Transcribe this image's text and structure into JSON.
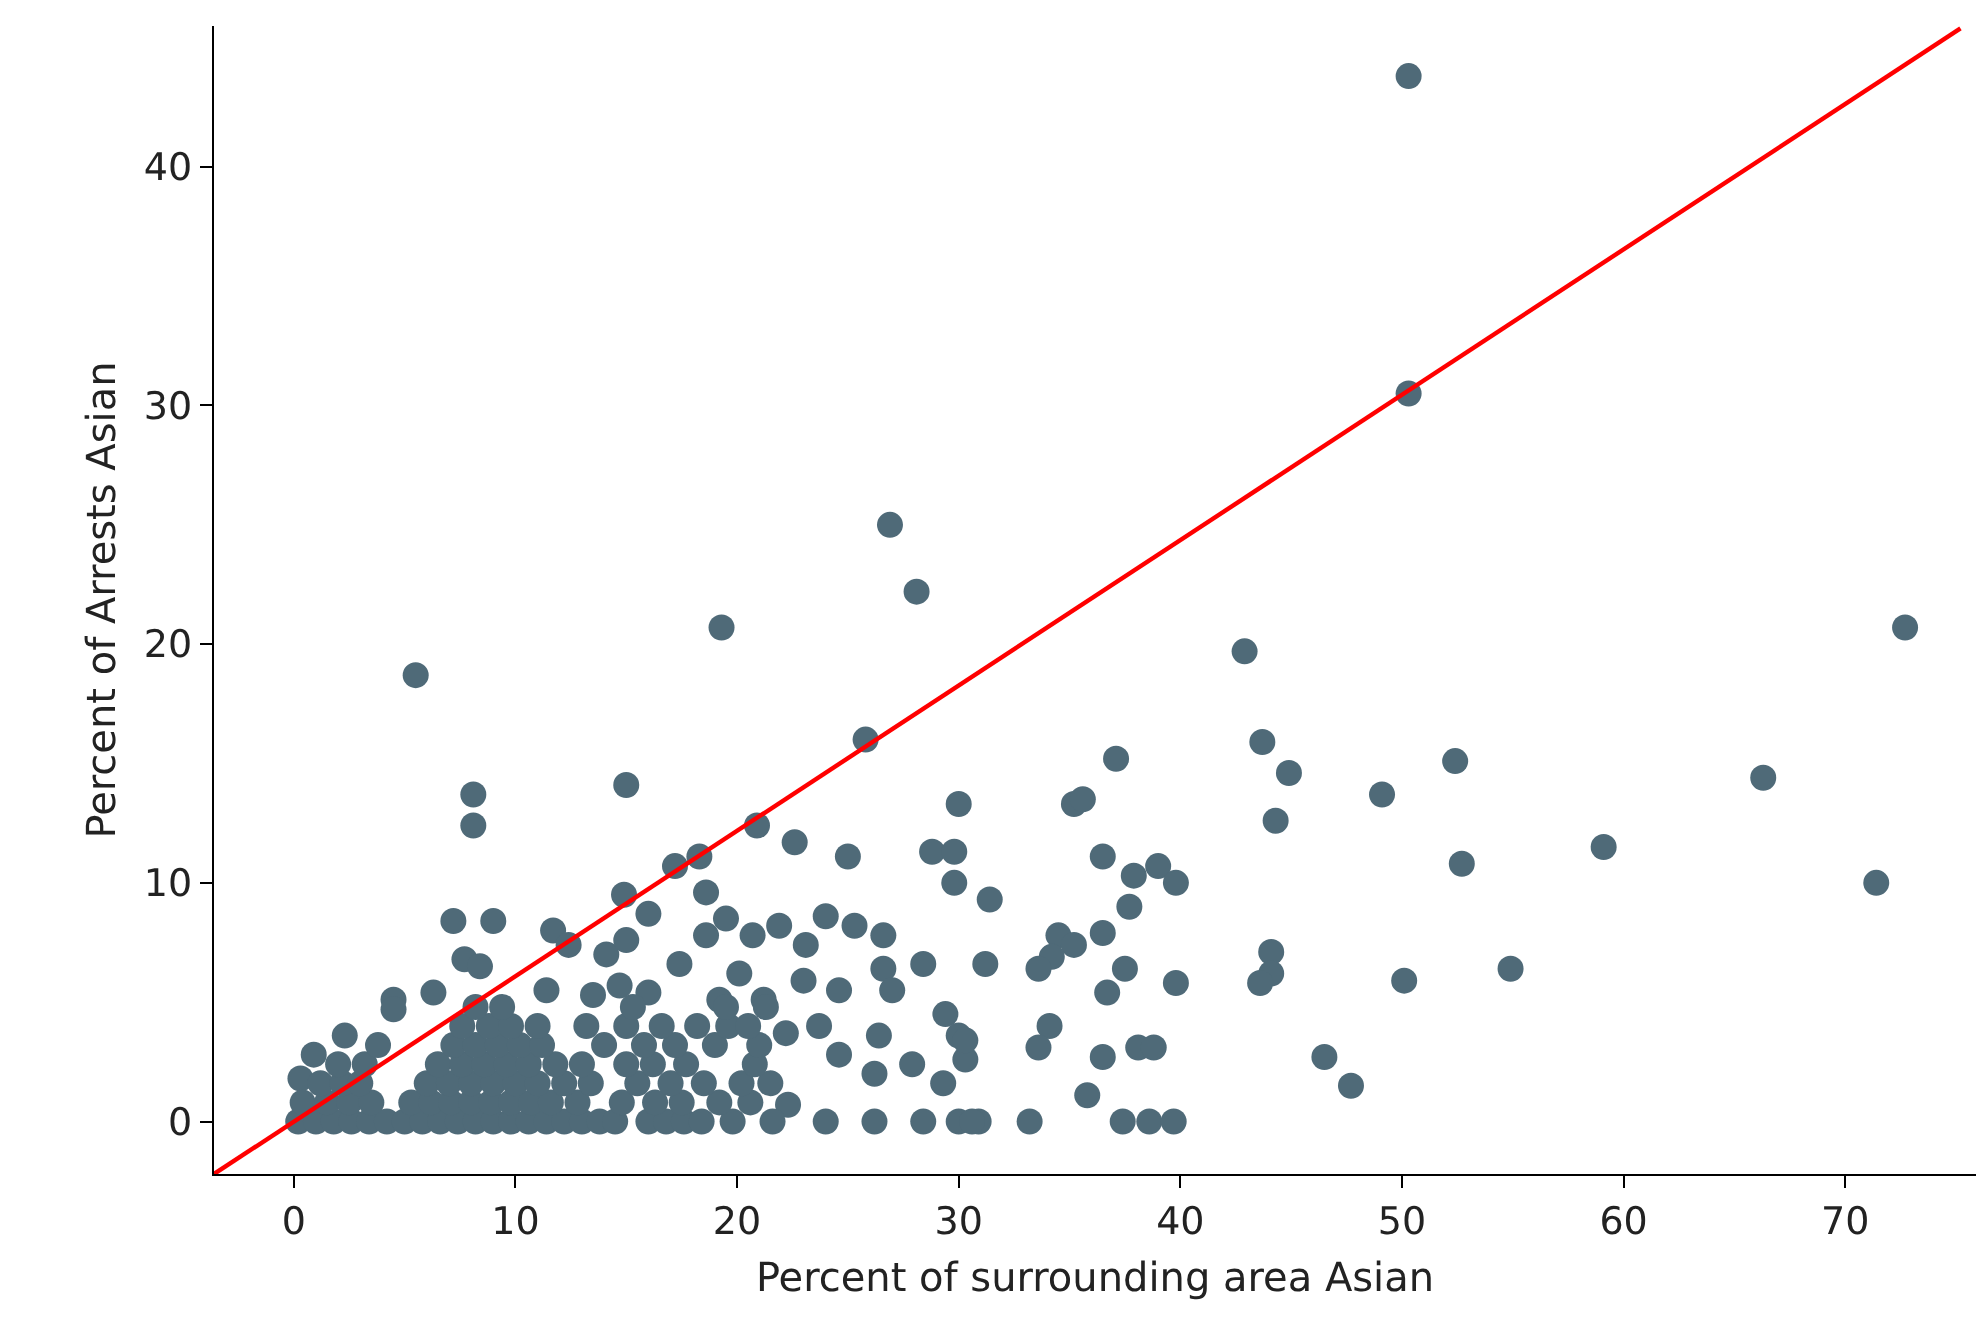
{
  "chart_data": {
    "type": "scatter",
    "xlabel": "Percent of surrounding area Asian",
    "ylabel": "Percent of Arrests Asian",
    "xlim": [
      -3.6,
      75.9
    ],
    "ylim": [
      -2.2,
      45.9
    ],
    "xticks": [
      0,
      10,
      20,
      30,
      40,
      50,
      60,
      70
    ],
    "yticks": [
      0,
      10,
      20,
      30,
      40
    ],
    "series": [
      {
        "marker": "circle",
        "color": "#4f6a78",
        "x": [
          50.3,
          50.3,
          42.9,
          72.7,
          26.9,
          28.1,
          19.3,
          5.5,
          15.0,
          8.1,
          8.1,
          25.8,
          30.0,
          20.9,
          22.6,
          25.0,
          28.8,
          29.8,
          29.8,
          31.4,
          18.3,
          17.2,
          18.6,
          14.9,
          16.0,
          7.2,
          9.0,
          11.7,
          12.4,
          14.1,
          15.0,
          19.5,
          18.6,
          20.7,
          21.9,
          23.1,
          24.0,
          25.3,
          26.6,
          28.4,
          31.2,
          17.4,
          26.6,
          27.0,
          24.6,
          23.0,
          20.1,
          19.2,
          21.2,
          16.0,
          14.7,
          13.5,
          11.4,
          7.7,
          8.4,
          6.3,
          4.5,
          4.5,
          2.3,
          0.9,
          0.3,
          26.4,
          24.6,
          29.4,
          30.0,
          30.3,
          29.3,
          27.9,
          26.2,
          22.3,
          24.0,
          26.2,
          28.4,
          30.0,
          30.9,
          19.8,
          21.6,
          22.2,
          23.7,
          37.1,
          43.7,
          44.9,
          44.3,
          49.1,
          52.4,
          52.7,
          59.1,
          66.3,
          71.4,
          35.2,
          35.6,
          36.5,
          37.9,
          39.0,
          39.8,
          37.7,
          34.5,
          35.2,
          34.2,
          33.6,
          36.5,
          37.5,
          36.7,
          39.8,
          44.1,
          44.1,
          43.6,
          50.1,
          54.9,
          34.1,
          33.6,
          38.1,
          38.8,
          36.5,
          35.8,
          46.5,
          47.7,
          33.2,
          37.4,
          38.6,
          39.7,
          30.3,
          30.6,
          0.2,
          1,
          1.8,
          2.6,
          3.4,
          4.2,
          5,
          5.8,
          6.6,
          7.4,
          8.2,
          9,
          9.8,
          10.6,
          11.4,
          12.2,
          13,
          13.8,
          14.5,
          16,
          16.8,
          17.6,
          18.4,
          0.4,
          1.5,
          2.5,
          3.5,
          5.3,
          6.2,
          7.1,
          8,
          8.9,
          9.8,
          10.7,
          11.6,
          12.8,
          14.8,
          16.3,
          17.5,
          19.2,
          20.6,
          1.2,
          2.2,
          3,
          6,
          7,
          8,
          9,
          10,
          11,
          12.2,
          13.4,
          15.5,
          17,
          18.5,
          20.2,
          21.5,
          2,
          3.2,
          6.5,
          7.6,
          8.6,
          9.6,
          10.6,
          11.8,
          13,
          15,
          16.2,
          17.7,
          20.8,
          3.8,
          7.2,
          8.2,
          9.2,
          10.2,
          11.2,
          14,
          15.8,
          17.2,
          19,
          21,
          7.6,
          8.8,
          9.8,
          11,
          13.2,
          15,
          16.6,
          18.2,
          19.6,
          20.5,
          8.2,
          9.4,
          15.3,
          19.5,
          21.3
        ],
        "values": [
          43.8,
          30.5,
          19.7,
          20.7,
          25.0,
          22.2,
          20.7,
          18.7,
          14.1,
          13.7,
          12.4,
          16.0,
          13.3,
          12.4,
          11.7,
          11.1,
          11.3,
          11.3,
          10.0,
          9.3,
          11.1,
          10.7,
          9.6,
          9.5,
          8.7,
          8.4,
          8.4,
          8.0,
          7.4,
          7.0,
          7.6,
          8.5,
          7.8,
          7.8,
          8.2,
          7.4,
          8.6,
          8.2,
          7.8,
          6.6,
          6.6,
          6.6,
          6.4,
          5.5,
          5.5,
          5.9,
          6.2,
          5.1,
          5.1,
          5.4,
          5.7,
          5.3,
          5.5,
          6.8,
          6.5,
          5.4,
          5.1,
          4.7,
          3.6,
          2.8,
          1.8,
          3.6,
          2.8,
          4.5,
          3.6,
          2.6,
          1.6,
          2.4,
          2.0,
          0.7,
          0,
          0,
          0,
          0,
          0,
          0,
          0,
          3.7,
          4.0,
          15.2,
          15.9,
          14.6,
          12.6,
          13.7,
          15.1,
          10.8,
          11.5,
          14.4,
          10.0,
          13.3,
          13.5,
          11.1,
          10.3,
          10.7,
          10.0,
          9.0,
          7.8,
          7.4,
          6.9,
          6.4,
          7.9,
          6.4,
          5.4,
          5.8,
          7.1,
          6.2,
          5.8,
          5.9,
          6.4,
          4.0,
          3.1,
          3.1,
          3.1,
          2.7,
          1.1,
          2.7,
          1.5,
          0,
          0,
          0,
          0,
          3.4,
          0,
          0,
          0,
          0,
          0,
          0,
          0,
          0,
          0,
          0,
          0,
          0,
          0,
          0,
          0,
          0,
          0,
          0,
          0,
          0,
          0,
          0,
          0,
          0,
          0.8,
          0.8,
          0.8,
          0.8,
          0.8,
          0.8,
          0.8,
          0.8,
          0.8,
          0.8,
          0.8,
          0.8,
          0.8,
          0.8,
          0.8,
          0.8,
          0.8,
          0.8,
          1.6,
          1.6,
          1.6,
          1.6,
          1.6,
          1.6,
          1.6,
          1.6,
          1.6,
          1.6,
          1.6,
          1.6,
          1.6,
          1.6,
          1.6,
          1.6,
          2.4,
          2.4,
          2.4,
          2.4,
          2.4,
          2.4,
          2.4,
          2.4,
          2.4,
          2.4,
          2.4,
          2.4,
          2.4,
          3.2,
          3.2,
          3.2,
          3.2,
          3.2,
          3.2,
          3.2,
          3.2,
          3.2,
          3.2,
          3.2,
          4.0,
          4.0,
          4.0,
          4.0,
          4.0,
          4.0,
          4.0,
          4.0,
          4.0,
          4.0,
          4.8,
          4.8,
          4.8,
          4.8,
          4.8
        ]
      },
      {
        "type": "line",
        "marker": "none",
        "line_style": "solid",
        "color": "#ff0000",
        "x": [
          -3.6,
          75.2
        ],
        "values": [
          -2.2,
          45.8
        ]
      }
    ]
  }
}
